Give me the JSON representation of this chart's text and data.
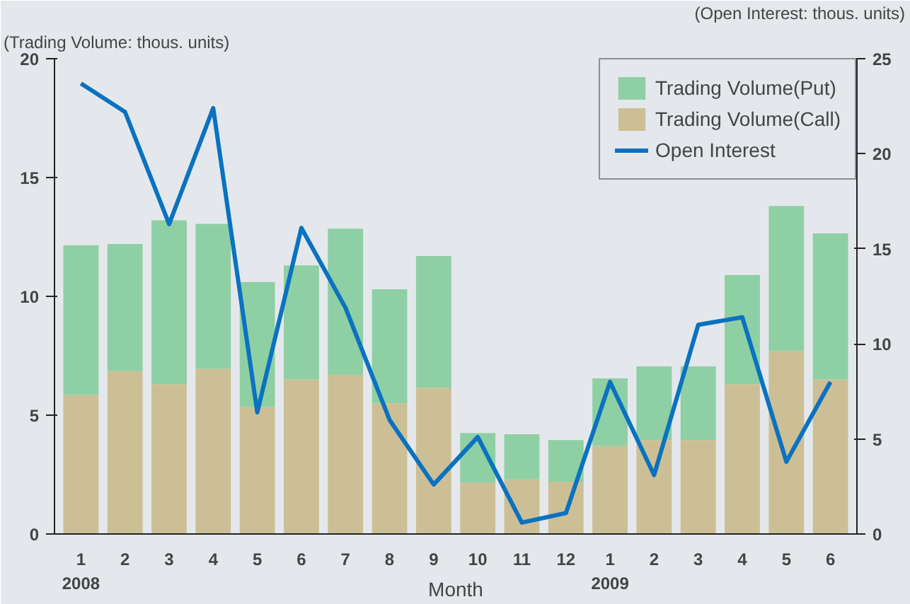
{
  "chart_data": {
    "type": "bar",
    "stacked": true,
    "xlabel": "Month",
    "ylabel": "(Trading Volume: thous. units)",
    "y2label": "(Open Interest: thous. units)",
    "categories": [
      "1\n2008",
      "2",
      "3",
      "4",
      "5",
      "6",
      "7",
      "8",
      "9",
      "10",
      "11",
      "12",
      "1\n2009",
      "2",
      "3",
      "4",
      "5",
      "6"
    ],
    "series": [
      {
        "name": "Trading Volume(Call)",
        "color": "#cdbf95",
        "values": [
          5.85,
          6.85,
          6.3,
          6.95,
          5.35,
          6.5,
          6.7,
          5.5,
          6.15,
          2.15,
          2.3,
          2.2,
          3.7,
          3.95,
          3.95,
          6.3,
          7.7,
          6.5
        ]
      },
      {
        "name": "Trading Volume(Put)",
        "color": "#8fcfa4",
        "values": [
          6.3,
          5.35,
          6.9,
          6.1,
          5.25,
          4.8,
          6.15,
          4.8,
          5.55,
          2.1,
          1.9,
          1.75,
          2.85,
          3.1,
          3.1,
          4.6,
          6.1,
          6.15
        ]
      },
      {
        "name": "Open Interest",
        "type": "line",
        "axis": "y2",
        "color": "#0a72c0",
        "values": [
          23.7,
          22.2,
          16.3,
          22.4,
          6.4,
          16.1,
          11.9,
          6.0,
          2.6,
          5.1,
          0.6,
          1.1,
          8.0,
          3.1,
          11.0,
          11.4,
          3.8,
          8.0
        ]
      }
    ],
    "ylim": [
      0,
      20
    ],
    "yticks": [
      0,
      5,
      10,
      15,
      20
    ],
    "y2lim": [
      0,
      25
    ],
    "y2ticks": [
      0,
      5,
      10,
      15,
      20,
      25
    ],
    "grid": false,
    "legend": "top right",
    "line_style": "solid",
    "marker": "none"
  }
}
